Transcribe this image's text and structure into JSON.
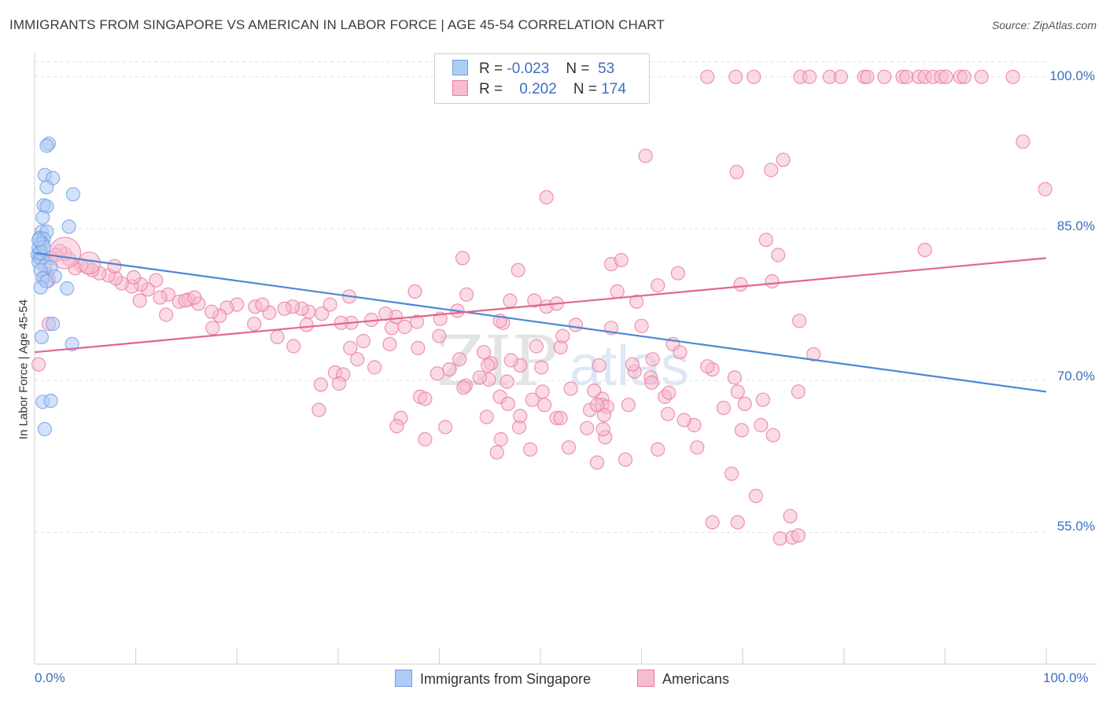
{
  "title": "IMMIGRANTS FROM SINGAPORE VS AMERICAN IN LABOR FORCE | AGE 45-54 CORRELATION CHART",
  "source": "Source: ZipAtlas.com",
  "watermark": {
    "zip": "ZIP",
    "atlas": "atlas"
  },
  "colors": {
    "blue": "#6fa0e6",
    "blue_fill": "#aecbf4",
    "pink": "#e87aa4",
    "pink_fill": "#f6bcd0",
    "axis_text": "#3a6fc4"
  },
  "legend": {
    "rows": [
      {
        "r_label": "R =",
        "r_value": "-0.023",
        "n_label": "N =",
        "n_value": "53"
      },
      {
        "r_label": "R =",
        "r_value": "0.202",
        "n_label": "N =",
        "n_value": "174"
      }
    ]
  },
  "bottom_legend": [
    "Immigrants from Singapore",
    "Americans"
  ],
  "chart_data": {
    "type": "scatter",
    "xlabel": "",
    "ylabel": "In Labor Force | Age 45-54",
    "xlim": [
      0,
      100
    ],
    "ylim": [
      42,
      102
    ],
    "x_tick_labels": [
      "0.0%",
      "100.0%"
    ],
    "y_ticks": [
      55,
      70,
      85,
      100
    ],
    "y_tick_labels": [
      "55.0%",
      "70.0%",
      "85.0%",
      "100.0%"
    ],
    "grid": true,
    "series": [
      {
        "name": "Immigrants from Singapore",
        "color": "blue",
        "trend": {
          "style": "dashed",
          "x": [
            0,
            100
          ],
          "y": [
            82.6,
            68.9
          ]
        },
        "points": [
          [
            1.4,
            93.4
          ],
          [
            1.2,
            93.2
          ],
          [
            1.0,
            90.3
          ],
          [
            1.8,
            90.0
          ],
          [
            1.2,
            89.1
          ],
          [
            3.8,
            88.4
          ],
          [
            0.9,
            87.3
          ],
          [
            1.2,
            87.2
          ],
          [
            0.8,
            86.1
          ],
          [
            3.4,
            85.2
          ],
          [
            0.7,
            84.7
          ],
          [
            1.2,
            84.7
          ],
          [
            0.5,
            84.1
          ],
          [
            0.9,
            84.0
          ],
          [
            0.6,
            83.6
          ],
          [
            0.8,
            83.5
          ],
          [
            0.4,
            83.1
          ],
          [
            0.6,
            82.8
          ],
          [
            0.3,
            82.4
          ],
          [
            0.5,
            82.1
          ],
          [
            0.7,
            82.0
          ],
          [
            0.4,
            81.7
          ],
          [
            1.0,
            81.3
          ],
          [
            1.6,
            81.2
          ],
          [
            0.6,
            80.9
          ],
          [
            2.0,
            80.3
          ],
          [
            0.8,
            80.1
          ],
          [
            1.2,
            79.8
          ],
          [
            0.6,
            79.2
          ],
          [
            3.2,
            79.1
          ],
          [
            1.8,
            75.6
          ],
          [
            0.7,
            74.3
          ],
          [
            3.7,
            73.6
          ],
          [
            0.8,
            67.9
          ],
          [
            1.6,
            68.0
          ],
          [
            1.0,
            65.2
          ],
          [
            0.5,
            82.6
          ],
          [
            0.9,
            83.2
          ],
          [
            0.4,
            83.9
          ]
        ]
      },
      {
        "name": "Americans",
        "color": "pink",
        "trend": {
          "style": "solid",
          "x": [
            0,
            100
          ],
          "y": [
            72.8,
            82.1
          ]
        },
        "points": [
          [
            66.5,
            100
          ],
          [
            69.3,
            100
          ],
          [
            71.1,
            100
          ],
          [
            75.7,
            100
          ],
          [
            76.6,
            100
          ],
          [
            78.6,
            100
          ],
          [
            79.7,
            100
          ],
          [
            82.0,
            100
          ],
          [
            82.3,
            100
          ],
          [
            84.0,
            100
          ],
          [
            85.8,
            100
          ],
          [
            86.2,
            100
          ],
          [
            87.4,
            100
          ],
          [
            88.0,
            100
          ],
          [
            88.8,
            100
          ],
          [
            89.6,
            100
          ],
          [
            90.1,
            100
          ],
          [
            91.5,
            100
          ],
          [
            91.9,
            100
          ],
          [
            93.6,
            100
          ],
          [
            96.7,
            100
          ],
          [
            97.7,
            93.6
          ],
          [
            60.4,
            92.2
          ],
          [
            74.0,
            91.8
          ],
          [
            69.4,
            90.6
          ],
          [
            72.8,
            90.8
          ],
          [
            99.9,
            88.9
          ],
          [
            50.6,
            88.1
          ],
          [
            72.3,
            83.9
          ],
          [
            88.0,
            82.9
          ],
          [
            73.5,
            82.4
          ],
          [
            42.3,
            82.1
          ],
          [
            47.8,
            80.9
          ],
          [
            57.0,
            81.5
          ],
          [
            63.6,
            80.6
          ],
          [
            58.0,
            81.9
          ],
          [
            61.6,
            79.4
          ],
          [
            57.6,
            78.8
          ],
          [
            47.0,
            77.9
          ],
          [
            42.7,
            78.5
          ],
          [
            59.5,
            77.8
          ],
          [
            37.6,
            78.8
          ],
          [
            50.6,
            77.3
          ],
          [
            51.6,
            77.6
          ],
          [
            41.8,
            76.9
          ],
          [
            31.1,
            78.3
          ],
          [
            29.2,
            77.5
          ],
          [
            35.3,
            75.2
          ],
          [
            37.8,
            75.8
          ],
          [
            46.3,
            75.7
          ],
          [
            53.5,
            75.5
          ],
          [
            57.0,
            75.2
          ],
          [
            60.0,
            75.4
          ],
          [
            69.8,
            79.5
          ],
          [
            72.9,
            79.8
          ],
          [
            75.6,
            75.9
          ],
          [
            63.1,
            73.6
          ],
          [
            52.0,
            73.3
          ],
          [
            50.1,
            71.3
          ],
          [
            60.9,
            70.3
          ],
          [
            61.0,
            69.8
          ],
          [
            67.0,
            71.1
          ],
          [
            68.1,
            67.3
          ],
          [
            72.0,
            68.1
          ],
          [
            75.5,
            68.9
          ],
          [
            77.0,
            72.6
          ],
          [
            49.6,
            73.4
          ],
          [
            48.0,
            71.5
          ],
          [
            46.0,
            68.4
          ],
          [
            46.8,
            67.7
          ],
          [
            42.0,
            72.1
          ],
          [
            44.4,
            72.8
          ],
          [
            40.0,
            74.4
          ],
          [
            37.9,
            73.2
          ],
          [
            35.1,
            73.6
          ],
          [
            32.5,
            73.9
          ],
          [
            33.6,
            71.3
          ],
          [
            29.7,
            70.8
          ],
          [
            30.5,
            70.6
          ],
          [
            28.3,
            69.6
          ],
          [
            38.1,
            68.4
          ],
          [
            38.6,
            68.2
          ],
          [
            36.2,
            66.3
          ],
          [
            35.8,
            65.5
          ],
          [
            51.6,
            66.3
          ],
          [
            54.9,
            67.1
          ],
          [
            56.1,
            68.2
          ],
          [
            56.1,
            67.6
          ],
          [
            63.8,
            72.8
          ],
          [
            66.5,
            71.4
          ],
          [
            55.3,
            69.0
          ],
          [
            56.6,
            67.4
          ],
          [
            44.9,
            70.1
          ],
          [
            44.0,
            70.3
          ],
          [
            46.7,
            69.9
          ],
          [
            50.2,
            68.9
          ],
          [
            69.5,
            68.9
          ],
          [
            49.2,
            68.1
          ],
          [
            39.8,
            70.7
          ],
          [
            42.6,
            69.5
          ],
          [
            30.1,
            69.7
          ],
          [
            41.0,
            71.1
          ],
          [
            45.1,
            71.7
          ],
          [
            28.1,
            67.1
          ],
          [
            38.6,
            64.2
          ],
          [
            44.8,
            71.5
          ],
          [
            50.4,
            67.6
          ],
          [
            56.3,
            66.6
          ],
          [
            59.3,
            70.9
          ],
          [
            62.3,
            68.4
          ],
          [
            47.1,
            72.0
          ],
          [
            31.9,
            72.1
          ],
          [
            46.0,
            75.9
          ],
          [
            40.1,
            76.1
          ],
          [
            35.7,
            76.3
          ],
          [
            34.7,
            76.6
          ],
          [
            33.3,
            76.0
          ],
          [
            31.3,
            75.7
          ],
          [
            30.3,
            75.7
          ],
          [
            28.4,
            76.6
          ],
          [
            27.1,
            76.8
          ],
          [
            26.4,
            77.1
          ],
          [
            25.5,
            77.3
          ],
          [
            24.7,
            77.1
          ],
          [
            23.2,
            76.7
          ],
          [
            21.8,
            77.3
          ],
          [
            20.0,
            77.5
          ],
          [
            19.0,
            77.2
          ],
          [
            18.3,
            76.4
          ],
          [
            17.5,
            76.8
          ],
          [
            16.2,
            77.6
          ],
          [
            15.2,
            78.0
          ],
          [
            14.3,
            77.8
          ],
          [
            13.2,
            78.5
          ],
          [
            12.4,
            78.2
          ],
          [
            11.2,
            79.0
          ],
          [
            10.5,
            79.5
          ],
          [
            9.6,
            79.3
          ],
          [
            8.6,
            79.6
          ],
          [
            8.0,
            80.1
          ],
          [
            7.3,
            80.4
          ],
          [
            6.4,
            80.6
          ],
          [
            5.7,
            80.9
          ],
          [
            5.2,
            81.2
          ],
          [
            4.6,
            81.4
          ],
          [
            4.0,
            81.1
          ],
          [
            3.4,
            82.0
          ],
          [
            3.0,
            82.5
          ],
          [
            2.5,
            82.8
          ],
          [
            2.1,
            82.4
          ],
          [
            1.6,
            82.1
          ],
          [
            1.2,
            80.5
          ],
          [
            1.4,
            75.6
          ],
          [
            0.4,
            71.6
          ],
          [
            14.9,
            77.9
          ],
          [
            13.0,
            76.5
          ],
          [
            10.4,
            77.9
          ],
          [
            17.6,
            75.2
          ],
          [
            21.7,
            75.6
          ],
          [
            24.0,
            74.3
          ],
          [
            26.9,
            75.5
          ],
          [
            22.5,
            77.5
          ],
          [
            15.8,
            78.2
          ],
          [
            12.0,
            79.9
          ],
          [
            9.8,
            80.2
          ],
          [
            7.9,
            81.3
          ],
          [
            25.6,
            73.4
          ],
          [
            49.4,
            77.9
          ],
          [
            36.6,
            75.3
          ],
          [
            52.2,
            74.4
          ],
          [
            31.2,
            73.2
          ],
          [
            44.7,
            66.4
          ],
          [
            47.9,
            65.4
          ],
          [
            40.6,
            65.4
          ],
          [
            46.1,
            64.2
          ],
          [
            42.4,
            69.3
          ],
          [
            54.6,
            65.3
          ],
          [
            65.2,
            65.6
          ],
          [
            70.2,
            67.7
          ],
          [
            61.1,
            72.1
          ],
          [
            62.7,
            68.8
          ],
          [
            59.1,
            71.6
          ],
          [
            55.8,
            71.5
          ],
          [
            69.2,
            70.3
          ],
          [
            53.0,
            69.2
          ],
          [
            56.4,
            64.4
          ],
          [
            69.9,
            65.1
          ],
          [
            71.8,
            65.6
          ],
          [
            56.2,
            65.2
          ],
          [
            55.6,
            67.6
          ],
          [
            58.7,
            67.6
          ],
          [
            62.6,
            66.7
          ],
          [
            64.2,
            66.1
          ],
          [
            73.0,
            64.6
          ],
          [
            48.0,
            66.5
          ],
          [
            52.0,
            66.3
          ],
          [
            45.7,
            62.9
          ],
          [
            49.0,
            63.2
          ],
          [
            52.8,
            63.4
          ],
          [
            55.6,
            61.9
          ],
          [
            58.4,
            62.2
          ],
          [
            61.6,
            63.2
          ],
          [
            65.5,
            63.4
          ],
          [
            68.9,
            60.8
          ],
          [
            71.3,
            58.6
          ],
          [
            73.7,
            54.4
          ],
          [
            74.7,
            56.6
          ],
          [
            67.0,
            56.0
          ],
          [
            74.9,
            54.5
          ],
          [
            75.5,
            54.7
          ],
          [
            69.5,
            56.0
          ]
        ]
      }
    ]
  }
}
